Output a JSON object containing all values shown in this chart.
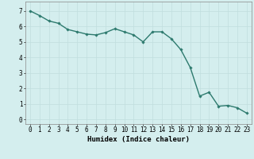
{
  "x": [
    0,
    1,
    2,
    3,
    4,
    5,
    6,
    7,
    8,
    9,
    10,
    11,
    12,
    13,
    14,
    15,
    16,
    17,
    18,
    19,
    20,
    21,
    22,
    23
  ],
  "y": [
    7.0,
    6.7,
    6.35,
    6.2,
    5.8,
    5.65,
    5.5,
    5.45,
    5.6,
    5.85,
    5.65,
    5.45,
    5.0,
    5.65,
    5.65,
    5.2,
    4.5,
    3.35,
    1.5,
    1.75,
    0.85,
    0.9,
    0.75,
    0.4
  ],
  "line_color": "#2d7a6e",
  "marker": "D",
  "markersize": 1.8,
  "linewidth": 1.0,
  "bg_color": "#d4eeee",
  "grid_color": "#c0dede",
  "xlabel": "Humidex (Indice chaleur)",
  "xlabel_fontsize": 6.5,
  "tick_fontsize": 5.5,
  "xlim": [
    -0.5,
    23.5
  ],
  "ylim": [
    -0.3,
    7.6
  ],
  "yticks": [
    0,
    1,
    2,
    3,
    4,
    5,
    6,
    7
  ],
  "xticks": [
    0,
    1,
    2,
    3,
    4,
    5,
    6,
    7,
    8,
    9,
    10,
    11,
    12,
    13,
    14,
    15,
    16,
    17,
    18,
    19,
    20,
    21,
    22,
    23
  ]
}
